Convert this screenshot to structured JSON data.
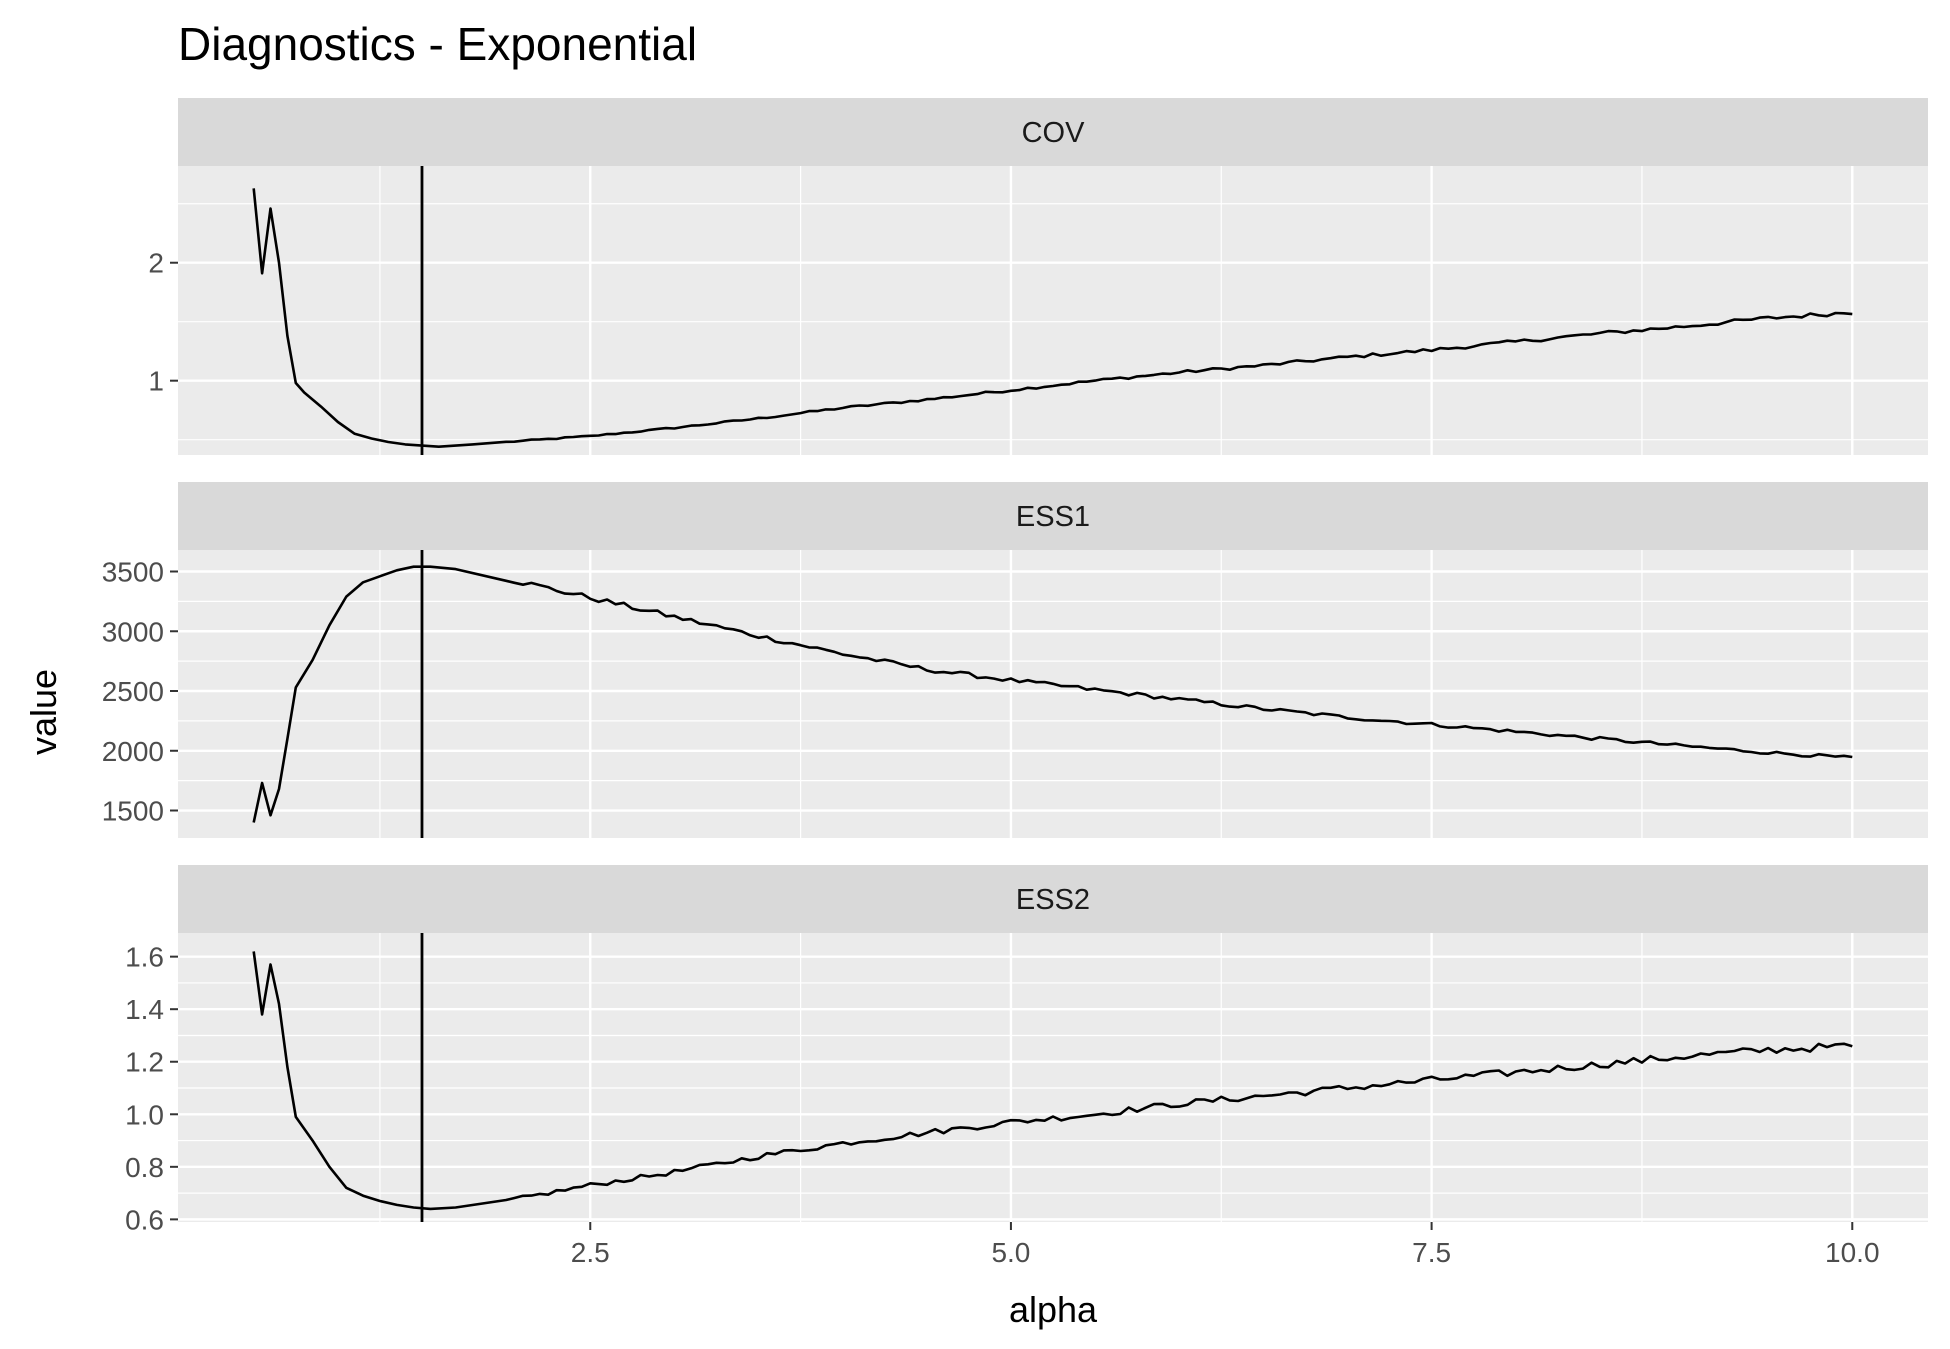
{
  "chart_data": {
    "type": "line",
    "title": "Diagnostics - Exponential",
    "xlabel": "alpha",
    "ylabel": "value",
    "xlim": [
      0.05,
      10.45
    ],
    "x_ticks": [
      2.5,
      5.0,
      7.5,
      10.0
    ],
    "x_tick_labels": [
      "2.5",
      "5.0",
      "7.5",
      "10.0"
    ],
    "vline_x": 1.5,
    "grid": true,
    "colors": {
      "panel_bg": "#ebebeb",
      "strip_bg": "#d9d9d9",
      "grid": "#ffffff",
      "line": "#000000"
    },
    "facets": [
      {
        "label": "COV",
        "ylim": [
          0.37,
          2.82
        ],
        "y_ticks": [
          1,
          2
        ],
        "y_tick_labels": [
          "1",
          "2"
        ],
        "anchors": [
          [
            0.5,
            2.63
          ],
          [
            0.55,
            1.91
          ],
          [
            0.6,
            2.46
          ],
          [
            0.65,
            2.0
          ],
          [
            0.7,
            1.38
          ],
          [
            0.75,
            0.98
          ],
          [
            0.8,
            0.9
          ],
          [
            0.9,
            0.78
          ],
          [
            1.0,
            0.65
          ],
          [
            1.1,
            0.55
          ],
          [
            1.2,
            0.51
          ],
          [
            1.3,
            0.48
          ],
          [
            1.4,
            0.46
          ],
          [
            1.5,
            0.45
          ],
          [
            1.6,
            0.44
          ],
          [
            1.8,
            0.46
          ],
          [
            2.0,
            0.48
          ],
          [
            2.5,
            0.53
          ],
          [
            3.0,
            0.6
          ],
          [
            3.5,
            0.68
          ],
          [
            4.0,
            0.77
          ],
          [
            4.5,
            0.84
          ],
          [
            5.0,
            0.92
          ],
          [
            5.5,
            1.0
          ],
          [
            6.0,
            1.07
          ],
          [
            6.5,
            1.13
          ],
          [
            7.0,
            1.2
          ],
          [
            7.5,
            1.26
          ],
          [
            8.0,
            1.33
          ],
          [
            8.5,
            1.4
          ],
          [
            9.0,
            1.46
          ],
          [
            9.5,
            1.53
          ],
          [
            10.0,
            1.58
          ]
        ]
      },
      {
        "label": "ESS1",
        "ylim": [
          1270,
          3680
        ],
        "y_ticks": [
          1500,
          2000,
          2500,
          3000,
          3500
        ],
        "y_tick_labels": [
          "1500",
          "2000",
          "2500",
          "3000",
          "3500"
        ],
        "anchors": [
          [
            0.5,
            1400
          ],
          [
            0.55,
            1730
          ],
          [
            0.6,
            1460
          ],
          [
            0.65,
            1680
          ],
          [
            0.7,
            2100
          ],
          [
            0.75,
            2530
          ],
          [
            0.85,
            2760
          ],
          [
            0.95,
            3050
          ],
          [
            1.05,
            3290
          ],
          [
            1.15,
            3410
          ],
          [
            1.25,
            3460
          ],
          [
            1.35,
            3510
          ],
          [
            1.45,
            3540
          ],
          [
            1.55,
            3540
          ],
          [
            1.7,
            3520
          ],
          [
            2.0,
            3440
          ],
          [
            2.5,
            3280
          ],
          [
            3.0,
            3120
          ],
          [
            3.5,
            2960
          ],
          [
            4.0,
            2810
          ],
          [
            4.5,
            2680
          ],
          [
            5.0,
            2590
          ],
          [
            5.5,
            2510
          ],
          [
            6.0,
            2430
          ],
          [
            6.5,
            2350
          ],
          [
            7.0,
            2280
          ],
          [
            7.5,
            2220
          ],
          [
            8.0,
            2160
          ],
          [
            8.5,
            2100
          ],
          [
            9.0,
            2040
          ],
          [
            9.5,
            1985
          ],
          [
            10.0,
            1940
          ]
        ]
      },
      {
        "label": "ESS2",
        "ylim": [
          0.59,
          1.69
        ],
        "y_ticks": [
          0.6,
          0.8,
          1.0,
          1.2,
          1.4,
          1.6
        ],
        "y_tick_labels": [
          "0.6",
          "0.8",
          "1.0",
          "1.2",
          "1.4",
          "1.6"
        ],
        "anchors": [
          [
            0.5,
            1.62
          ],
          [
            0.55,
            1.38
          ],
          [
            0.6,
            1.57
          ],
          [
            0.65,
            1.42
          ],
          [
            0.7,
            1.18
          ],
          [
            0.75,
            0.99
          ],
          [
            0.85,
            0.9
          ],
          [
            0.95,
            0.8
          ],
          [
            1.05,
            0.72
          ],
          [
            1.15,
            0.69
          ],
          [
            1.25,
            0.67
          ],
          [
            1.35,
            0.655
          ],
          [
            1.45,
            0.645
          ],
          [
            1.55,
            0.64
          ],
          [
            1.7,
            0.645
          ],
          [
            2.0,
            0.67
          ],
          [
            2.5,
            0.73
          ],
          [
            3.0,
            0.78
          ],
          [
            3.5,
            0.84
          ],
          [
            4.0,
            0.89
          ],
          [
            4.5,
            0.93
          ],
          [
            5.0,
            0.97
          ],
          [
            5.5,
            1.0
          ],
          [
            6.0,
            1.04
          ],
          [
            6.5,
            1.07
          ],
          [
            7.0,
            1.1
          ],
          [
            7.5,
            1.13
          ],
          [
            8.0,
            1.16
          ],
          [
            8.5,
            1.19
          ],
          [
            9.0,
            1.22
          ],
          [
            9.5,
            1.245
          ],
          [
            10.0,
            1.26
          ]
        ]
      }
    ]
  }
}
